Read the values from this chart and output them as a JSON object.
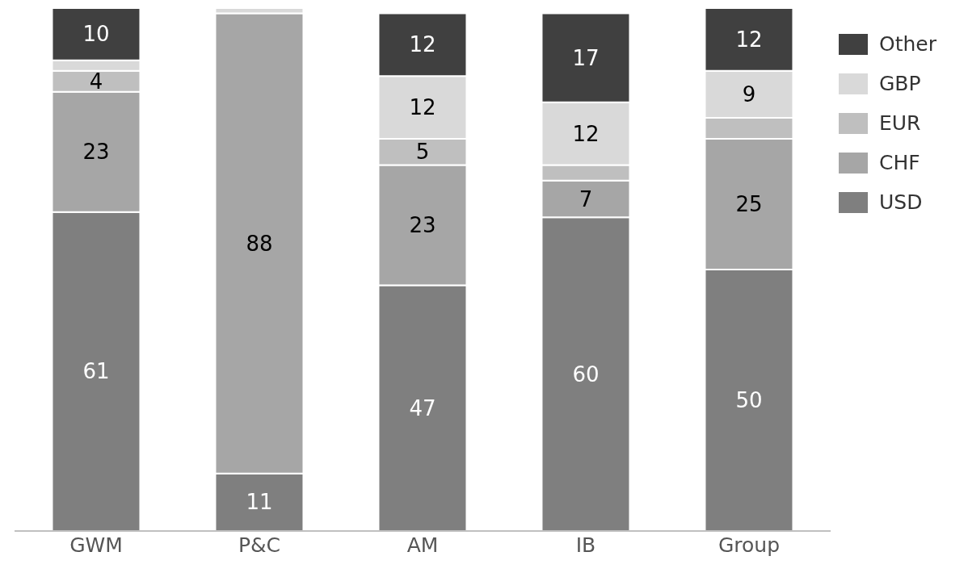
{
  "chart_data": {
    "type": "bar",
    "stacked": true,
    "categories": [
      "GWM",
      "P&C",
      "AM",
      "IB",
      "Group"
    ],
    "ylim": [
      0,
      100
    ],
    "legend": "top right",
    "series": [
      {
        "name": "USD",
        "color": "#7f7f7f",
        "values": [
          61,
          11,
          47,
          60,
          50
        ],
        "value_labels": [
          "61",
          "11",
          "47",
          "60",
          "50"
        ]
      },
      {
        "name": "CHF",
        "color": "#a6a6a6",
        "values": [
          23,
          88,
          23,
          7,
          25
        ],
        "value_labels": [
          "23",
          "88",
          "23",
          "7",
          "25"
        ]
      },
      {
        "name": "EUR",
        "color": "#bfbfbf",
        "values": [
          4,
          0,
          5,
          3,
          4
        ],
        "value_labels": [
          "4",
          null,
          "5",
          null,
          null
        ]
      },
      {
        "name": "GBP",
        "color": "#d9d9d9",
        "values": [
          2,
          1,
          12,
          12,
          9
        ],
        "value_labels": [
          null,
          null,
          "12",
          "12",
          "9"
        ]
      },
      {
        "name": "Other",
        "color": "#404040",
        "values": [
          10,
          0,
          12,
          17,
          12
        ],
        "value_labels": [
          "10",
          null,
          "12",
          "17",
          "12"
        ]
      }
    ]
  }
}
